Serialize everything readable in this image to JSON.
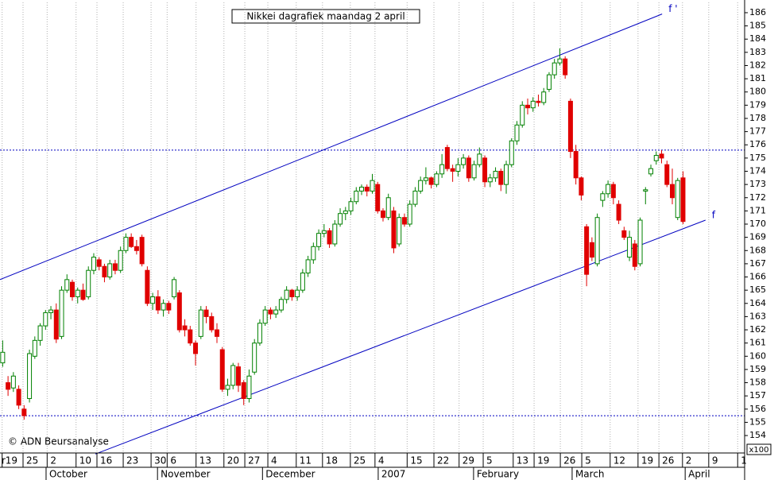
{
  "chart_data": {
    "type": "candlestick",
    "title": "Nikkei dagrafiek maandag 2 april",
    "annotation": "© ADN Beursanalyse",
    "unit_label": "x100",
    "cut_label": "r",
    "up_color": "#008000",
    "down_color": "#e00000",
    "trend_color": "#0000c0",
    "ylim": [
      152.68,
      186.78
    ],
    "yticks": [
      154,
      155,
      156,
      157,
      158,
      159,
      160,
      161,
      162,
      163,
      164,
      165,
      166,
      167,
      168,
      169,
      170,
      171,
      172,
      173,
      174,
      175,
      176,
      177,
      178,
      179,
      180,
      181,
      182,
      183,
      184,
      185,
      186
    ],
    "xlim": [
      -0.5,
      138.5
    ],
    "xticks": [
      {
        "value": -0.1,
        "label": "19"
      },
      {
        "value": 3.8,
        "label": "25"
      },
      {
        "value": 8.3,
        "label": "2"
      },
      {
        "value": 13.7,
        "label": "10"
      },
      {
        "value": 17.6,
        "label": "16"
      },
      {
        "value": 22.5,
        "label": "23"
      },
      {
        "value": 27.7,
        "label": "30"
      },
      {
        "value": 30.7,
        "label": "6"
      },
      {
        "value": 36.1,
        "label": "13"
      },
      {
        "value": 41.3,
        "label": "20"
      },
      {
        "value": 45.2,
        "label": "27"
      },
      {
        "value": 49.5,
        "label": "4"
      },
      {
        "value": 54.8,
        "label": "11"
      },
      {
        "value": 59.7,
        "label": "18"
      },
      {
        "value": 64.9,
        "label": "25"
      },
      {
        "value": 69.5,
        "label": "4"
      },
      {
        "value": 75.5,
        "label": "15"
      },
      {
        "value": 80.5,
        "label": "22"
      },
      {
        "value": 85.2,
        "label": "29"
      },
      {
        "value": 89.7,
        "label": "5"
      },
      {
        "value": 95.3,
        "label": "13"
      },
      {
        "value": 99.2,
        "label": "19"
      },
      {
        "value": 104.1,
        "label": "26"
      },
      {
        "value": 108.1,
        "label": "5"
      },
      {
        "value": 113.4,
        "label": "12"
      },
      {
        "value": 118.6,
        "label": "19"
      },
      {
        "value": 122.5,
        "label": "26"
      },
      {
        "value": 126.9,
        "label": "2"
      },
      {
        "value": 131.8,
        "label": "9"
      },
      {
        "value": 137.2,
        "label": "1"
      }
    ],
    "months": [
      {
        "value": 8.1,
        "label": "October"
      },
      {
        "value": 28.9,
        "label": "November"
      },
      {
        "value": 48.5,
        "label": "December"
      },
      {
        "value": 70.1,
        "label": "2007"
      },
      {
        "value": 87.9,
        "label": "February"
      },
      {
        "value": 106.3,
        "label": "March"
      },
      {
        "value": 127.4,
        "label": "April"
      }
    ],
    "hlines": [
      175.6,
      155.5
    ],
    "trendlines": [
      {
        "name": "f '",
        "x": [
          -0.5,
          123.1
        ],
        "y": [
          165.8,
          185.9
        ]
      },
      {
        "name": "f",
        "x": [
          17.3,
          131.2
        ],
        "y": [
          152.6,
          170.3
        ]
      }
    ],
    "x": [
      0,
      1,
      2,
      3,
      4,
      5,
      6,
      7,
      8,
      9,
      10,
      11,
      12,
      13,
      14,
      15,
      16,
      17,
      18,
      19,
      20,
      21,
      22,
      23,
      24,
      25,
      26,
      27,
      28,
      29,
      30,
      31,
      32,
      33,
      34,
      35,
      36,
      37,
      38,
      39,
      40,
      41,
      42,
      43,
      44,
      45,
      46,
      47,
      48,
      49,
      50,
      51,
      52,
      53,
      54,
      55,
      56,
      57,
      58,
      59,
      60,
      61,
      62,
      63,
      64,
      65,
      66,
      67,
      68,
      69,
      70,
      71,
      72,
      73,
      74,
      75,
      76,
      77,
      78,
      79,
      80,
      81,
      82,
      83,
      84,
      85,
      86,
      87,
      88,
      89,
      90,
      91,
      92,
      93,
      94,
      95,
      96,
      97,
      98,
      99,
      100,
      101,
      102,
      103,
      104,
      105,
      106,
      107,
      108,
      109,
      110,
      111,
      112,
      113,
      114,
      115,
      116,
      117,
      118,
      119,
      120,
      121,
      122,
      123,
      124,
      125,
      126,
      127
    ],
    "candles": [
      [
        159.5,
        161.2,
        159.2,
        160.3
      ],
      [
        158,
        158.5,
        157,
        157.5
      ],
      [
        157.6,
        158.8,
        157.3,
        158.5
      ],
      [
        157.5,
        157.8,
        156,
        156.3
      ],
      [
        156,
        156.3,
        155.2,
        155.5
      ],
      [
        156.8,
        160.5,
        156.5,
        160.2
      ],
      [
        160,
        161.5,
        159.8,
        161.2
      ],
      [
        161.2,
        162.5,
        160.8,
        162.3
      ],
      [
        162.3,
        163.5,
        162,
        163.3
      ],
      [
        163.3,
        163.8,
        162.8,
        163.5
      ],
      [
        163.5,
        164,
        161,
        161.3
      ],
      [
        161.5,
        165.3,
        161.3,
        165
      ],
      [
        165,
        166.2,
        164.8,
        165.8
      ],
      [
        165.6,
        165.8,
        164.2,
        164.5
      ],
      [
        164.5,
        165.2,
        164,
        165
      ],
      [
        165,
        165.5,
        164.2,
        164.3
      ],
      [
        164.5,
        166.8,
        164.3,
        166.5
      ],
      [
        166.5,
        167.8,
        166.2,
        167.5
      ],
      [
        167.3,
        167.5,
        166.5,
        166.8
      ],
      [
        166.8,
        167,
        165.6,
        166
      ],
      [
        166,
        167.3,
        165.8,
        167
      ],
      [
        167,
        167.3,
        166.2,
        166.5
      ],
      [
        166.5,
        168.3,
        166.3,
        168
      ],
      [
        168,
        169.3,
        167.8,
        169
      ],
      [
        169,
        169.3,
        168.2,
        168.3
      ],
      [
        168.3,
        168.8,
        167.7,
        168
      ],
      [
        169,
        169.2,
        166.8,
        167
      ],
      [
        166.5,
        166.8,
        163.8,
        164
      ],
      [
        164,
        164.8,
        163.5,
        164.5
      ],
      [
        164.5,
        165,
        163.2,
        163.5
      ],
      [
        163.5,
        164.3,
        163,
        164
      ],
      [
        164,
        164.2,
        163.2,
        163.5
      ],
      [
        164.5,
        166,
        164.3,
        165.8
      ],
      [
        164.8,
        165,
        161.8,
        162
      ],
      [
        162.3,
        162.8,
        161.5,
        162
      ],
      [
        162,
        162.3,
        160.8,
        161
      ],
      [
        161,
        161.2,
        159.3,
        160.2
      ],
      [
        161.5,
        163.8,
        161.3,
        163.5
      ],
      [
        163.5,
        163.8,
        162.5,
        163
      ],
      [
        163,
        163.3,
        161.8,
        162
      ],
      [
        162,
        162.5,
        161,
        161.5
      ],
      [
        160.5,
        160.7,
        157.3,
        157.5
      ],
      [
        157.5,
        158.3,
        157,
        157.8
      ],
      [
        157.8,
        159.5,
        157.5,
        159.3
      ],
      [
        159.2,
        159.5,
        157.3,
        157.8
      ],
      [
        158,
        158.2,
        156.3,
        156.8
      ],
      [
        156.8,
        159,
        156.5,
        158.5
      ],
      [
        158.8,
        161.3,
        158.6,
        161
      ],
      [
        161,
        162.8,
        160.8,
        162.5
      ],
      [
        162.5,
        163.8,
        162.3,
        163.5
      ],
      [
        163.5,
        163.7,
        162.8,
        163.2
      ],
      [
        163.2,
        163.8,
        162.9,
        163.5
      ],
      [
        163.5,
        164.5,
        163.3,
        164.3
      ],
      [
        164.3,
        165.3,
        164,
        165
      ],
      [
        165,
        165.1,
        164.2,
        164.5
      ],
      [
        164.5,
        165.3,
        164.2,
        165
      ],
      [
        165,
        166.6,
        164.8,
        166.3
      ],
      [
        166.3,
        167.6,
        166,
        167.3
      ],
      [
        167.3,
        168.6,
        167,
        168.3
      ],
      [
        168.3,
        169.6,
        168,
        169.3
      ],
      [
        169.3,
        170,
        169,
        169.5
      ],
      [
        169.5,
        169.7,
        168.2,
        168.5
      ],
      [
        168.5,
        170.3,
        168.3,
        170
      ],
      [
        170,
        171.2,
        169.8,
        170.8
      ],
      [
        170.8,
        171.3,
        170.3,
        171
      ],
      [
        171,
        172,
        170.7,
        171.7
      ],
      [
        171.7,
        172.8,
        171.5,
        172.5
      ],
      [
        172.5,
        173,
        172.2,
        172.8
      ],
      [
        172.8,
        173,
        172.1,
        172.5
      ],
      [
        172.5,
        173.8,
        172.3,
        173.3
      ],
      [
        173,
        173.2,
        170.8,
        171
      ],
      [
        171,
        171.2,
        170.2,
        170.5
      ],
      [
        170.5,
        172.3,
        170.3,
        172
      ],
      [
        171,
        171.3,
        167.8,
        168.2
      ],
      [
        168.5,
        170.8,
        168.3,
        170.5
      ],
      [
        170.5,
        170.8,
        169.8,
        170
      ],
      [
        170,
        171.8,
        169.8,
        171.5
      ],
      [
        171.5,
        172.8,
        171.3,
        172.5
      ],
      [
        172.5,
        173.6,
        172.3,
        173.3
      ],
      [
        173.3,
        174.3,
        173,
        173.5
      ],
      [
        173.5,
        173.6,
        172.7,
        173
      ],
      [
        173,
        174,
        172.8,
        173.8
      ],
      [
        173.8,
        175.3,
        173.5,
        174.5
      ],
      [
        175.8,
        176,
        174,
        174.2
      ],
      [
        174.2,
        174.5,
        173.2,
        174
      ],
      [
        174,
        175,
        173.6,
        174.5
      ],
      [
        174.5,
        175.3,
        174.2,
        175
      ],
      [
        175,
        175.2,
        173.2,
        173.5
      ],
      [
        173.5,
        174.8,
        173.3,
        174.5
      ],
      [
        174.5,
        175.8,
        174.3,
        175.3
      ],
      [
        175,
        175.2,
        172.8,
        173.2
      ],
      [
        173.2,
        173.8,
        172.8,
        173.5
      ],
      [
        173.5,
        174.3,
        173.2,
        174
      ],
      [
        174,
        174.2,
        172.5,
        173
      ],
      [
        173,
        174.8,
        172.3,
        174.5
      ],
      [
        174.5,
        176.5,
        174.3,
        176.3
      ],
      [
        176.3,
        177.8,
        176,
        177.5
      ],
      [
        177.5,
        179.3,
        177.3,
        179
      ],
      [
        179,
        179.5,
        178.3,
        178.8
      ],
      [
        178.8,
        179.6,
        178.5,
        179.3
      ],
      [
        179.3,
        179.8,
        178.9,
        179.2
      ],
      [
        179.2,
        180.3,
        179,
        180
      ],
      [
        180.2,
        181.5,
        180,
        181.3
      ],
      [
        181.3,
        182.5,
        181,
        182.2
      ],
      [
        182.2,
        183.3,
        182,
        182.5
      ],
      [
        182.5,
        182.7,
        181,
        181.3
      ],
      [
        179.3,
        179.5,
        175,
        175.5
      ],
      [
        175.5,
        176,
        173,
        173.5
      ],
      [
        173.5,
        173.6,
        171.8,
        172.2
      ],
      [
        169.8,
        170,
        165.3,
        166.2
      ],
      [
        168.6,
        169,
        167.2,
        167.5
      ],
      [
        167,
        170.8,
        166.8,
        170.5
      ],
      [
        171.8,
        172.5,
        171.3,
        172.3
      ],
      [
        172.3,
        173.3,
        172,
        173
      ],
      [
        173,
        173.2,
        171.5,
        172
      ],
      [
        171.5,
        171.8,
        170,
        170.3
      ],
      [
        169.5,
        169.8,
        168.8,
        169
      ],
      [
        167.5,
        169.5,
        167.2,
        169
      ],
      [
        168.5,
        168.8,
        166.5,
        166.8
      ],
      [
        167,
        170.5,
        166.8,
        170.3
      ],
      [
        172.5,
        172.8,
        171.5,
        172.6
      ],
      [
        173.8,
        174.5,
        173.6,
        174.2
      ],
      [
        174.8,
        175.5,
        174.5,
        175.2
      ],
      [
        175.3,
        175.6,
        174.6,
        175
      ],
      [
        174.5,
        174.8,
        172.8,
        173
      ],
      [
        173,
        174.2,
        171.5,
        172
      ],
      [
        170.5,
        173.5,
        170.3,
        173.3
      ],
      [
        173.5,
        174,
        170,
        170.2
      ]
    ]
  }
}
